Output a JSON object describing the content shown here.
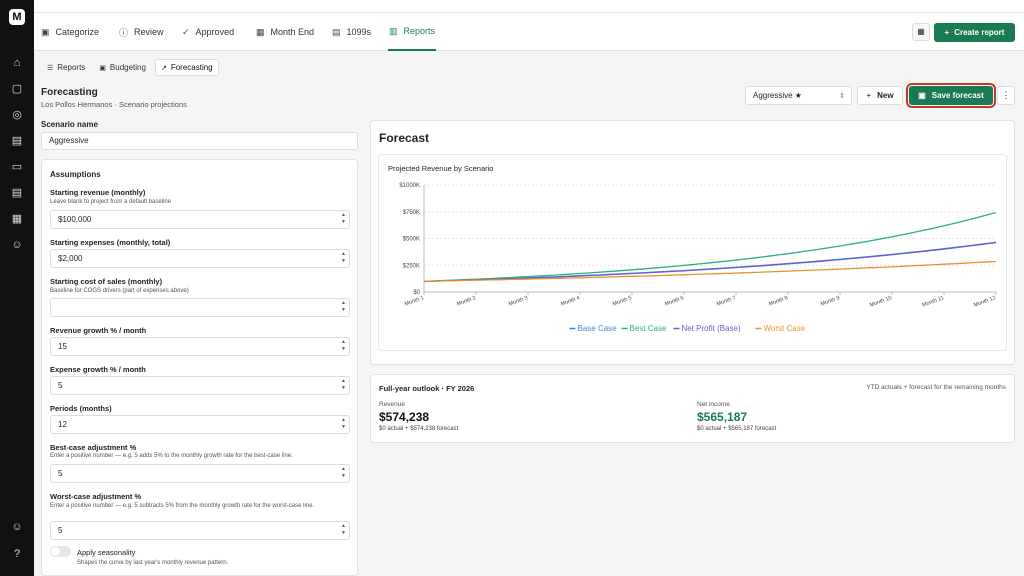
{
  "tabs": [
    {
      "label": "Categorize",
      "icon": "categorize-icon",
      "glyph": "▣"
    },
    {
      "label": "Review",
      "icon": "info-icon",
      "glyph": "ⓘ"
    },
    {
      "label": "Approved",
      "icon": "check-circle-icon",
      "glyph": "✓"
    },
    {
      "label": "Month End",
      "icon": "calendar-icon",
      "glyph": "▦"
    },
    {
      "label": "1099s",
      "icon": "document-icon",
      "glyph": "▤"
    },
    {
      "label": "Reports",
      "icon": "bar-chart-icon",
      "glyph": "▥"
    }
  ],
  "toolbar": {
    "create_report": "Create report",
    "create_icon": "plus-icon"
  },
  "subtabs": [
    {
      "label": "Reports",
      "icon": "list-icon"
    },
    {
      "label": "Budgeting",
      "icon": "budget-icon"
    },
    {
      "label": "Forecasting",
      "icon": "trend-icon"
    }
  ],
  "page": {
    "title": "Forecasting",
    "subtitle": "Los Pollos Hermanos · Scenario projections"
  },
  "actions": {
    "scenario": "Aggressive ★",
    "new_label": "New",
    "save_label": "Save forecast"
  },
  "scenario_name": {
    "label": "Scenario name",
    "value": "Aggressive"
  },
  "assumptions": {
    "title": "Assumptions",
    "fields": [
      {
        "label": "Starting revenue (monthly)",
        "hint": "Leave blank to project from a default baseline",
        "value": "$100,000"
      },
      {
        "label": "Starting expenses (monthly, total)",
        "hint": "",
        "value": "$2,000"
      },
      {
        "label": "Starting cost of sales (monthly)",
        "hint": "Baseline for COGS drivers (part of expenses above)",
        "value": ""
      },
      {
        "label": "Revenue growth % / month",
        "hint": "",
        "value": "15"
      },
      {
        "label": "Expense growth % / month",
        "hint": "",
        "value": "5"
      },
      {
        "label": "Periods (months)",
        "hint": "",
        "value": "12"
      },
      {
        "label": "Best-case adjustment %",
        "hint": "Enter a positive number — e.g. 5 adds 5% to the monthly growth rate for the best-case line.",
        "value": "5"
      },
      {
        "label": "Worst-case adjustment %",
        "hint": "Enter a positive number — e.g. 5 subtracts 5% from the monthly growth rate for the worst-case line.",
        "value": "5"
      }
    ],
    "seasonality_label": "Apply seasonality",
    "seasonality_hint": "Shapes the curve by last year's monthly revenue pattern.",
    "seasonality_on": false
  },
  "forecast_title": "Forecast",
  "chart_data": {
    "type": "line",
    "title": "Projected Revenue by Scenario",
    "x": [
      "Month 1",
      "Month 2",
      "Month 3",
      "Month 4",
      "Month 5",
      "Month 6",
      "Month 7",
      "Month 8",
      "Month 9",
      "Month 10",
      "Month 11",
      "Month 12"
    ],
    "yticks": [
      "$0",
      "$250K",
      "$500K",
      "$750K",
      "$1000K"
    ],
    "ylim": [
      0,
      1000000
    ],
    "series": [
      {
        "name": "Base Case",
        "color": "#3b8fd1",
        "values": [
          100000,
          115000,
          132250,
          152088,
          174901,
          201136,
          231306,
          266002,
          305902,
          351788,
          404556,
          465239
        ]
      },
      {
        "name": "Best Case",
        "color": "#2ab07f",
        "values": [
          100000,
          120000,
          144000,
          172800,
          207360,
          248832,
          298598,
          358318,
          429982,
          515978,
          619174,
          743008
        ]
      },
      {
        "name": "Net Profit (Base)",
        "color": "#6b5bd6",
        "values": [
          98000,
          112900,
          130045,
          149773,
          172470,
          198584,
          228625,
          263187,
          302947,
          348687,
          401305,
          461833
        ]
      },
      {
        "name": "Worst Case",
        "color": "#e8922b",
        "values": [
          100000,
          110000,
          121000,
          133100,
          146410,
          161051,
          177156,
          194872,
          214359,
          235795,
          259374,
          285312
        ]
      }
    ],
    "grid": true,
    "legend": "bottom"
  },
  "outlook": {
    "title": "Full-year outlook · FY 2026",
    "note": "YTD actuals + forecast for the remaining months",
    "revenue_label": "Revenue",
    "revenue_value": "$574,238",
    "revenue_sub": "$0 actual + $574,238 forecast",
    "net_label": "Net income",
    "net_value": "$565,187",
    "net_sub": "$0 actual + $565,187 forecast",
    "accent": "#1a7a52"
  },
  "colors": {
    "brand": "#1a7a52",
    "highlight": "#c0392b"
  }
}
